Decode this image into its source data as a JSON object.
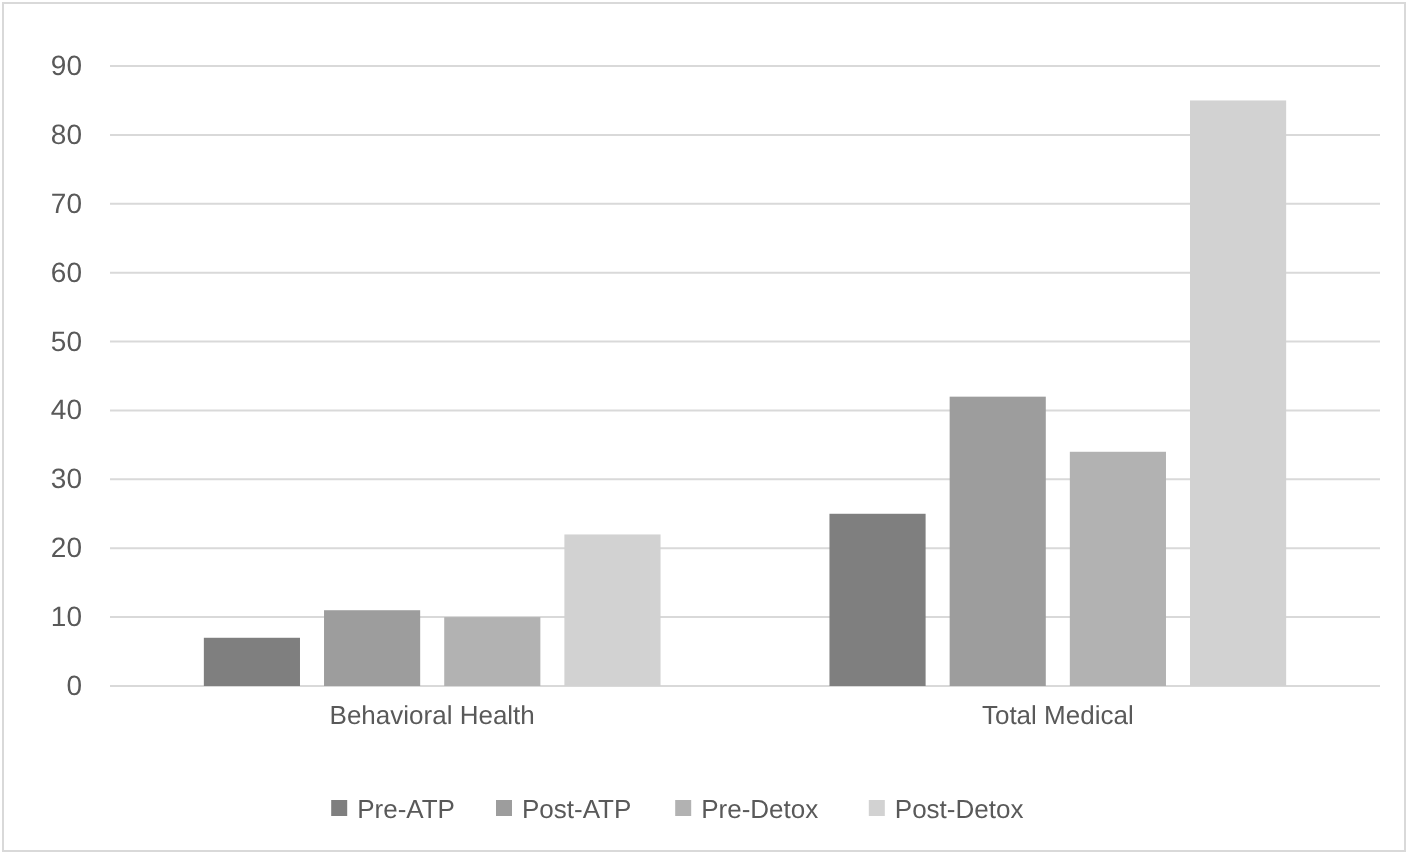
{
  "chart_data": {
    "type": "bar",
    "categories": [
      "Behavioral Health",
      "Total Medical"
    ],
    "series": [
      {
        "name": "Pre-ATP",
        "color": "#7f7f7f",
        "values": [
          7,
          25
        ]
      },
      {
        "name": "Post-ATP",
        "color": "#9d9d9d",
        "values": [
          11,
          42
        ]
      },
      {
        "name": "Pre-Detox",
        "color": "#b2b2b2",
        "values": [
          10,
          34
        ]
      },
      {
        "name": "Post-Detox",
        "color": "#d2d2d2",
        "values": [
          22,
          85
        ]
      }
    ],
    "ylim": [
      0,
      90
    ],
    "yticks": [
      0,
      10,
      20,
      30,
      40,
      50,
      60,
      70,
      80,
      90
    ],
    "grid": "y",
    "legend": "bottom"
  }
}
